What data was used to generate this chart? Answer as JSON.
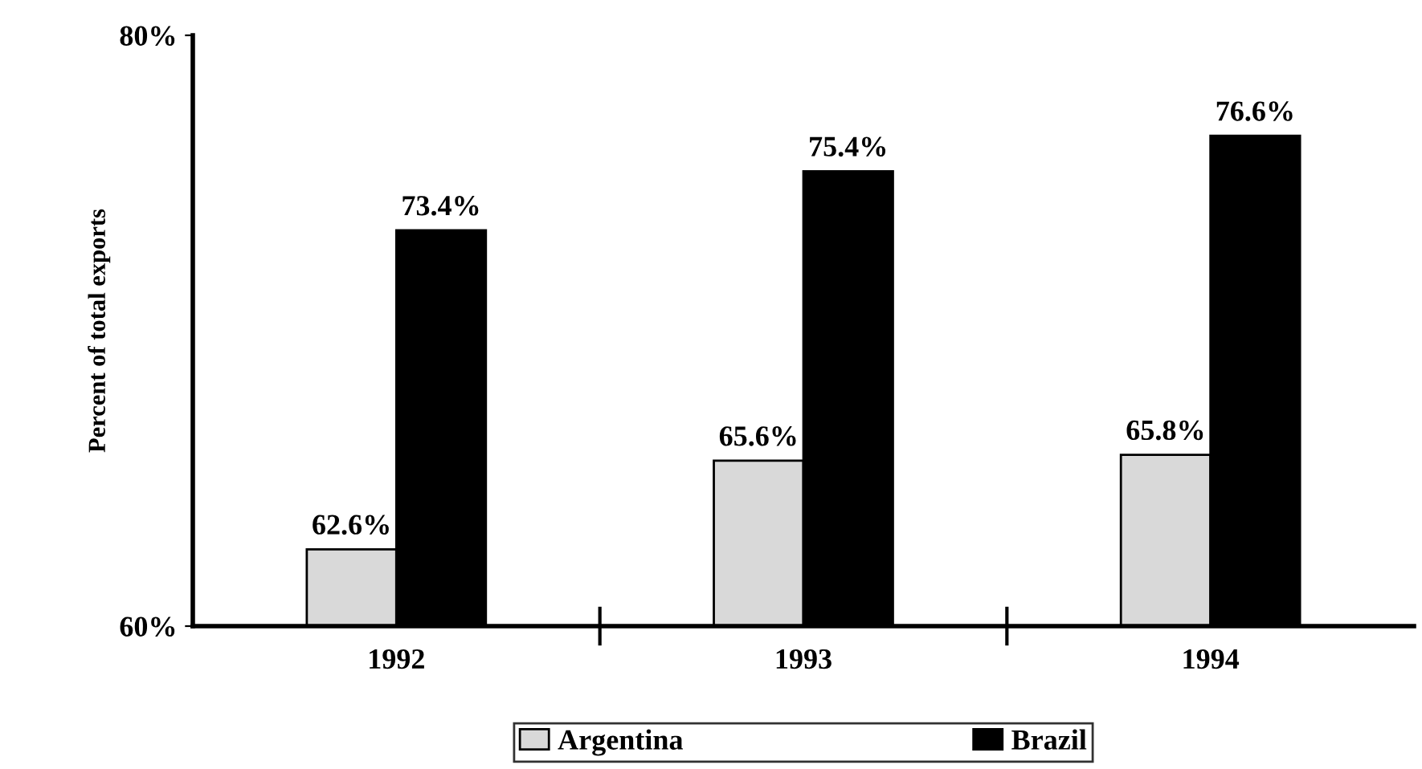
{
  "chart_data": {
    "type": "bar",
    "ylabel": "Percent of total exports",
    "categories": [
      "1992",
      "1993",
      "1994"
    ],
    "series": [
      {
        "name": "Argentina",
        "color": "#d9d9d9",
        "values": [
          62.6,
          65.6,
          65.8
        ],
        "value_labels": [
          "62.6%",
          "65.6%",
          "65.8%"
        ]
      },
      {
        "name": "Brazil",
        "color": "#000000",
        "values": [
          73.4,
          75.4,
          76.6
        ],
        "value_labels": [
          "73.4%",
          "75.4%",
          "76.6%"
        ]
      }
    ],
    "ylim": [
      60,
      80
    ],
    "yticks": [
      {
        "value": 60,
        "label": "60%"
      },
      {
        "value": 80,
        "label": "80%"
      }
    ],
    "grid": false,
    "legend": "bottom"
  }
}
